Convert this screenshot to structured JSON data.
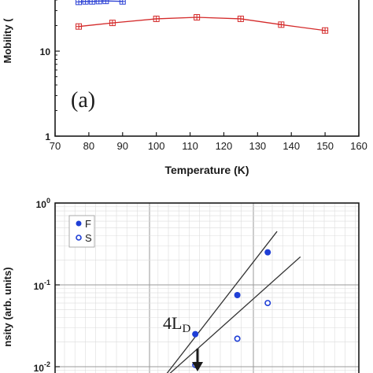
{
  "chart_data": [
    {
      "panel": "(a)",
      "type": "line",
      "xlabel": "Temperature (K)",
      "ylabel": "Mobility (",
      "xlim": [
        70,
        160
      ],
      "ylim_log": [
        1,
        40
      ],
      "y_scale": "log",
      "x_ticks": [
        "70",
        "80",
        "90",
        "100",
        "110",
        "120",
        "130",
        "140",
        "150",
        "160"
      ],
      "y_ticks": [
        {
          "value": 1,
          "label": "1"
        },
        {
          "value": 10,
          "label": "10"
        }
      ],
      "series": [
        {
          "color": "#d42a2a",
          "marker": "square-cross",
          "x": [
            77,
            87,
            100,
            112,
            125,
            137,
            150
          ],
          "y": [
            19.5,
            21.5,
            24,
            25,
            24,
            20.5,
            17.5
          ]
        },
        {
          "color": "#2a3fd4",
          "marker": "square-cross",
          "x": [
            77,
            79,
            81,
            83,
            85,
            90
          ],
          "y": [
            38,
            38.5,
            38.5,
            38.8,
            39,
            38.5
          ]
        }
      ]
    },
    {
      "panel": "(b)",
      "type": "scatter",
      "ylabel": "nsity (arb. units)",
      "y_scale": "log",
      "ylim_log": [
        0.01,
        1
      ],
      "y_ticks": [
        {
          "value": 1,
          "label": "10",
          "exp": "0"
        },
        {
          "value": 0.1,
          "label": "10",
          "exp": "-1"
        },
        {
          "value": 0.01,
          "label": "10",
          "exp": "-2"
        }
      ],
      "annotation": {
        "text": "4L",
        "sub": "D"
      },
      "legend": {
        "placement": "top-left",
        "entries": [
          {
            "label": "F",
            "marker": "filled-circle"
          },
          {
            "label": "S",
            "marker": "open-circle"
          }
        ]
      },
      "series": [
        {
          "name": "F",
          "color": "#1f3fd6",
          "marker": "filled",
          "x": [
            0.6,
            0.78,
            0.91
          ],
          "y": [
            0.025,
            0.075,
            0.25
          ]
        },
        {
          "name": "S",
          "color": "#1f3fd6",
          "marker": "open",
          "x": [
            0.6,
            0.78,
            0.91
          ],
          "y": [
            0.0105,
            0.022,
            0.06
          ]
        }
      ],
      "fit_lines": [
        {
          "x": [
            0.45,
            0.95
          ],
          "y": [
            0.0065,
            0.45
          ]
        },
        {
          "x": [
            0.45,
            1.05
          ],
          "y": [
            0.0065,
            0.22
          ]
        }
      ]
    }
  ]
}
